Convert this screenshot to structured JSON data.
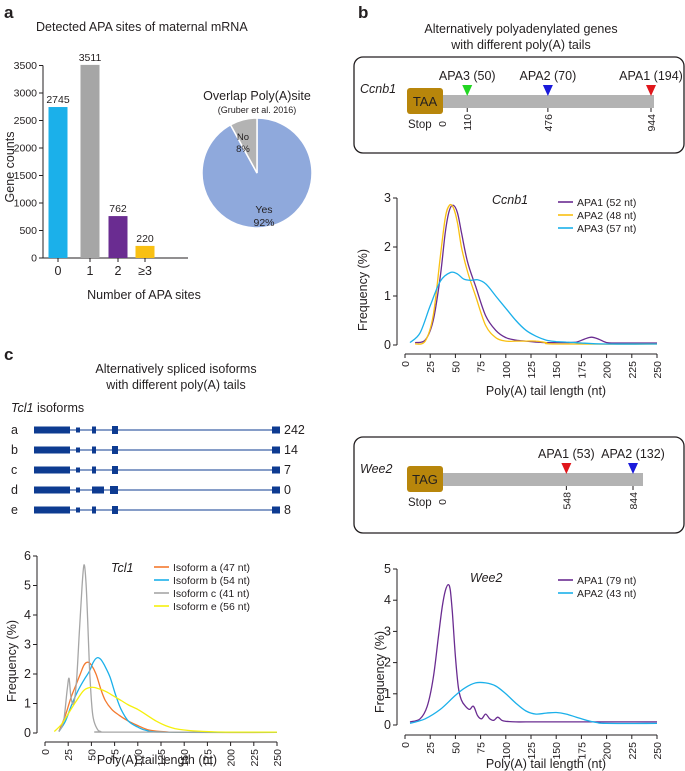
{
  "panels": {
    "a": {
      "letter": "a",
      "title": "Detected APA sites of maternal mRNA",
      "pie_title": "Overlap Poly(A)site",
      "pie_subtitle": "(Gruber et al. 2016)"
    },
    "b": {
      "letter": "b",
      "title_line1": "Alternatively polyadenylated genes",
      "title_line2": "with different poly(A) tails",
      "ccnb1": {
        "gene": "Ccnb1",
        "stop_box": "TAA",
        "stop_label": "Stop",
        "zero": "0",
        "sites": [
          {
            "label": "APA3 (50)",
            "pos": "110",
            "value": 110,
            "color": "#22d622"
          },
          {
            "label": "APA2 (70)",
            "pos": "476",
            "value": 476,
            "color": "#1a1adb"
          },
          {
            "label": "APA1 (194)",
            "pos": "944",
            "value": 944,
            "color": "#e0161b"
          }
        ]
      },
      "wee2": {
        "gene": "Wee2",
        "stop_box": "TAG",
        "stop_label": "Stop",
        "zero": "0",
        "sites": [
          {
            "label": "APA1 (53)",
            "pos": "548",
            "value": 548,
            "color": "#e0161b"
          },
          {
            "label": "APA2 (132)",
            "pos": "844",
            "value": 844,
            "color": "#1a1adb"
          }
        ]
      }
    },
    "c": {
      "letter": "c",
      "title_line1": "Alternatively spliced isoforms",
      "title_line2": "with different poly(A) tails",
      "isoforms_gene": "Tcl1",
      "isoforms_suffix": " isoforms",
      "isoforms": [
        {
          "id": "a",
          "count": "242"
        },
        {
          "id": "b",
          "count": "14"
        },
        {
          "id": "c",
          "count": "7"
        },
        {
          "id": "d",
          "count": "0"
        },
        {
          "id": "e",
          "count": "8"
        }
      ]
    }
  },
  "colors": {
    "cyan": "#1bb0ea",
    "grey": "#a6a6a6",
    "purple": "#6a2c91",
    "yellow": "#f9c012",
    "pie_yes": "#8fa9dc",
    "pie_no": "#b3b3b3",
    "stop_box": "#b8860b",
    "gene_bar": "#b3b3b3",
    "isoform": "#0d3b91"
  },
  "chart_data": [
    {
      "id": "apa-bar",
      "type": "bar",
      "title": "Detected APA sites of maternal mRNA",
      "xlabel": "Number of APA sites",
      "ylabel": "Gene counts",
      "categories": [
        "0",
        "1",
        "2",
        "≥3"
      ],
      "values": [
        2745,
        3511,
        762,
        220
      ],
      "value_labels": [
        "2745",
        "3511",
        "762",
        "220"
      ],
      "bar_colors": [
        "#1bb0ea",
        "#a6a6a6",
        "#6a2c91",
        "#f9c012"
      ],
      "ylim": [
        0,
        3600
      ],
      "yticks": [
        0,
        500,
        1000,
        1500,
        2000,
        2500,
        3000,
        3500
      ]
    },
    {
      "id": "overlap-pie",
      "type": "pie",
      "title": "Overlap Poly(A)site",
      "subtitle": "(Gruber et al. 2016)",
      "slices": [
        {
          "label": "Yes",
          "pct_label": "92%",
          "value": 92,
          "color": "#8fa9dc"
        },
        {
          "label": "No",
          "pct_label": "8%",
          "value": 8,
          "color": "#b3b3b3"
        }
      ]
    },
    {
      "id": "ccnb1-density",
      "type": "line",
      "title": "Ccnb1",
      "xlabel": "Poly(A) tail length (nt)",
      "ylabel": "Frequency (%)",
      "xlim": [
        0,
        250
      ],
      "ylim": [
        0,
        3
      ],
      "xticks": [
        0,
        25,
        50,
        75,
        100,
        125,
        150,
        175,
        200,
        225,
        250
      ],
      "yticks": [
        0,
        1,
        2,
        3
      ],
      "series": [
        {
          "name": "APA1 (52 nt)",
          "color": "#6a2c91",
          "x": [
            10,
            20,
            28,
            35,
            40,
            44,
            48,
            52,
            56,
            62,
            70,
            80,
            90,
            100,
            110,
            120,
            130,
            140,
            150,
            160,
            170,
            178,
            185,
            192,
            200,
            210,
            250
          ],
          "y": [
            0.05,
            0.1,
            0.5,
            1.4,
            2.3,
            2.75,
            2.85,
            2.7,
            2.3,
            1.7,
            1.2,
            0.6,
            0.3,
            0.15,
            0.1,
            0.08,
            0.06,
            0.05,
            0.05,
            0.05,
            0.06,
            0.12,
            0.16,
            0.12,
            0.05,
            0.04,
            0.04
          ]
        },
        {
          "name": "APA2 (48 nt)",
          "color": "#f9c012",
          "x": [
            10,
            20,
            28,
            35,
            40,
            44,
            48,
            52,
            56,
            62,
            70,
            80,
            90,
            100,
            110,
            120,
            130,
            140,
            150,
            250
          ],
          "y": [
            0.02,
            0.08,
            0.6,
            1.8,
            2.6,
            2.85,
            2.8,
            2.5,
            2.0,
            1.5,
            1.0,
            0.4,
            0.15,
            0.08,
            0.08,
            0.08,
            0.08,
            0.05,
            0.02,
            0.02
          ]
        },
        {
          "name": "APA3 (57 nt)",
          "color": "#1bb0ea",
          "x": [
            5,
            15,
            25,
            35,
            45,
            52,
            58,
            65,
            72,
            80,
            90,
            100,
            110,
            120,
            130,
            140,
            150,
            160,
            175,
            200,
            250
          ],
          "y": [
            0.05,
            0.25,
            0.8,
            1.3,
            1.48,
            1.45,
            1.35,
            1.32,
            1.33,
            1.25,
            1.0,
            0.75,
            0.5,
            0.3,
            0.18,
            0.1,
            0.07,
            0.06,
            0.04,
            0.02,
            0.02
          ]
        }
      ]
    },
    {
      "id": "tcl1-density",
      "type": "line",
      "title": "Tcl1",
      "xlabel": "Poly(A) tail length (nt)",
      "ylabel": "Frequency (%)",
      "xlim": [
        0,
        250
      ],
      "ylim": [
        0,
        6
      ],
      "xticks": [
        0,
        25,
        50,
        75,
        100,
        125,
        150,
        175,
        200,
        225,
        250
      ],
      "yticks": [
        0,
        1,
        2,
        3,
        4,
        5,
        6
      ],
      "series": [
        {
          "name": "Isoform a (47 nt)",
          "color": "#f4792e",
          "x": [
            15,
            22,
            28,
            33,
            38,
            42,
            46,
            50,
            55,
            60,
            65,
            72,
            80,
            90,
            100,
            110,
            120,
            130,
            150,
            250
          ],
          "y": [
            0.05,
            0.6,
            1.2,
            1.6,
            2.0,
            2.3,
            2.4,
            2.3,
            2.0,
            1.5,
            1.1,
            0.8,
            0.6,
            0.4,
            0.25,
            0.12,
            0.06,
            0.04,
            0.02,
            0.02
          ]
        },
        {
          "name": "Isoform b (54 nt)",
          "color": "#1bb0ea",
          "x": [
            15,
            22,
            28,
            35,
            42,
            48,
            52,
            56,
            60,
            64,
            70,
            76,
            82,
            90,
            100,
            110,
            130,
            250
          ],
          "y": [
            0.05,
            0.4,
            0.9,
            1.4,
            1.8,
            2.1,
            2.4,
            2.55,
            2.5,
            2.3,
            1.9,
            1.3,
            0.8,
            0.4,
            0.2,
            0.08,
            0.03,
            0.02
          ]
        },
        {
          "name": "Isoform c (41 nt)",
          "color": "#a6a6a6",
          "x": [
            15,
            20,
            24,
            26,
            28,
            31,
            34,
            37,
            40,
            42,
            44,
            46,
            48,
            50,
            52,
            56,
            60,
            70,
            250
          ],
          "y": [
            0.05,
            0.4,
            1.5,
            1.85,
            1.2,
            1.0,
            1.8,
            3.4,
            5.0,
            5.7,
            5.2,
            3.8,
            2.2,
            1.1,
            0.5,
            0.15,
            0.05,
            0.03,
            0.03
          ]
        },
        {
          "name": "Isoform e (56 nt)",
          "color": "#f5f00c",
          "x": [
            10,
            18,
            26,
            34,
            42,
            50,
            58,
            66,
            74,
            82,
            90,
            100,
            110,
            120,
            130,
            140,
            150,
            160,
            180,
            200,
            250
          ],
          "y": [
            0.05,
            0.3,
            0.7,
            1.1,
            1.45,
            1.55,
            1.5,
            1.4,
            1.25,
            1.1,
            0.95,
            0.8,
            0.6,
            0.4,
            0.25,
            0.15,
            0.1,
            0.07,
            0.04,
            0.03,
            0.03
          ]
        }
      ]
    },
    {
      "id": "wee2-density",
      "type": "line",
      "title": "Wee2",
      "xlabel": "Poly(A) tail length (nt)",
      "ylabel": "Frequency (%)",
      "xlim": [
        0,
        250
      ],
      "ylim": [
        0,
        5
      ],
      "xticks": [
        0,
        25,
        50,
        75,
        100,
        125,
        150,
        175,
        200,
        225,
        250
      ],
      "yticks": [
        0,
        1,
        2,
        3,
        4,
        5
      ],
      "series": [
        {
          "name": "APA1 (79 nt)",
          "color": "#6a2c91",
          "x": [
            5,
            15,
            22,
            28,
            33,
            37,
            40,
            43,
            45,
            47,
            50,
            53,
            56,
            60,
            64,
            68,
            72,
            76,
            80,
            84,
            88,
            92,
            96,
            100,
            110,
            120,
            150,
            250
          ],
          "y": [
            0.1,
            0.2,
            0.6,
            1.5,
            2.8,
            3.8,
            4.3,
            4.5,
            4.3,
            3.6,
            2.2,
            1.2,
            0.8,
            0.6,
            0.5,
            0.6,
            0.3,
            0.2,
            0.35,
            0.2,
            0.15,
            0.25,
            0.15,
            0.12,
            0.1,
            0.1,
            0.1,
            0.1
          ]
        },
        {
          "name": "APA2 (43 nt)",
          "color": "#1bb0ea",
          "x": [
            5,
            20,
            35,
            50,
            60,
            70,
            80,
            90,
            100,
            110,
            120,
            130,
            140,
            150,
            160,
            170,
            180,
            190,
            200,
            250
          ],
          "y": [
            0.05,
            0.2,
            0.5,
            0.95,
            1.2,
            1.35,
            1.35,
            1.25,
            1.0,
            0.7,
            0.45,
            0.35,
            0.38,
            0.4,
            0.35,
            0.25,
            0.15,
            0.08,
            0.05,
            0.05
          ]
        }
      ]
    }
  ]
}
